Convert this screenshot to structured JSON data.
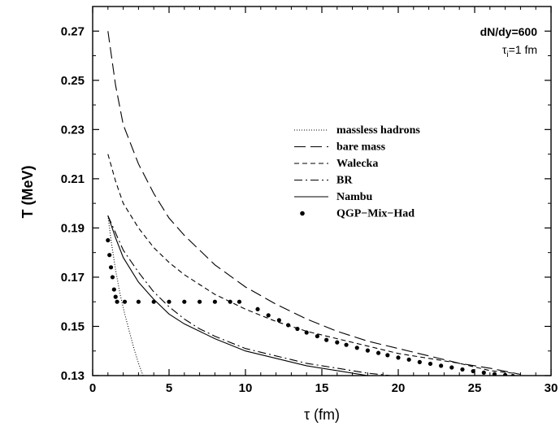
{
  "chart_data": {
    "type": "line",
    "xlabel": "τ (fm)",
    "ylabel": "T (MeV)",
    "xlim": [
      0,
      30
    ],
    "ylim": [
      0.13,
      0.28
    ],
    "x_ticks": [
      0,
      5,
      10,
      15,
      20,
      25,
      30
    ],
    "y_ticks": [
      0.13,
      0.15,
      0.17,
      0.19,
      0.21,
      0.23,
      0.25,
      0.27
    ],
    "annotations": {
      "line1": "dN/dy=600",
      "line2_main": "τ",
      "line2_sub": "i",
      "line2_rest": "=1 fm"
    },
    "legend_position": "center-right",
    "series": [
      {
        "name": "massless hadrons",
        "style": "dotted",
        "x": [
          1.0,
          1.2,
          1.5,
          1.8,
          2.1,
          2.4,
          2.7,
          3.0,
          3.3
        ],
        "y": [
          0.195,
          0.185,
          0.173,
          0.163,
          0.155,
          0.148,
          0.141,
          0.135,
          0.13
        ]
      },
      {
        "name": "bare mass",
        "style": "long-dash",
        "x": [
          1.0,
          1.5,
          2.0,
          3.0,
          4.0,
          5.0,
          6.0,
          8.0,
          10.0,
          12.0,
          14.0,
          16.0,
          18.0,
          20.0,
          22.0,
          24.0,
          26.0,
          28.0
        ],
        "y": [
          0.27,
          0.248,
          0.232,
          0.216,
          0.204,
          0.194,
          0.187,
          0.175,
          0.166,
          0.159,
          0.153,
          0.148,
          0.144,
          0.141,
          0.138,
          0.135,
          0.133,
          0.1305
        ]
      },
      {
        "name": "Walecka",
        "style": "short-dash",
        "x": [
          1.0,
          1.5,
          2.0,
          3.0,
          4.0,
          5.0,
          6.0,
          8.0,
          10.0,
          12.0,
          14.0,
          16.0,
          18.0,
          20.0,
          22.0,
          24.0,
          26.0,
          27.5
        ],
        "y": [
          0.22,
          0.209,
          0.2,
          0.19,
          0.182,
          0.176,
          0.171,
          0.163,
          0.157,
          0.152,
          0.148,
          0.145,
          0.142,
          0.139,
          0.137,
          0.135,
          0.132,
          0.131
        ]
      },
      {
        "name": "BR",
        "style": "dash-dot",
        "x": [
          1.0,
          1.5,
          2.0,
          3.0,
          4.0,
          5.0,
          6.0,
          7.0,
          8.0,
          10.0,
          12.0,
          14.0,
          16.0,
          18.0,
          19.5
        ],
        "y": [
          0.195,
          0.188,
          0.181,
          0.172,
          0.164,
          0.158,
          0.153,
          0.149,
          0.146,
          0.141,
          0.138,
          0.135,
          0.133,
          0.131,
          0.13
        ]
      },
      {
        "name": "Nambu",
        "style": "solid",
        "x": [
          1.0,
          1.5,
          2.0,
          3.0,
          4.0,
          5.0,
          6.0,
          7.0,
          8.0,
          10.0,
          12.0,
          14.0,
          16.0,
          18.0
        ],
        "y": [
          0.195,
          0.186,
          0.178,
          0.168,
          0.161,
          0.155,
          0.151,
          0.148,
          0.145,
          0.14,
          0.137,
          0.134,
          0.132,
          0.13
        ]
      },
      {
        "name": "QGP−Mix−Had",
        "style": "dots",
        "x": [
          1.0,
          1.1,
          1.2,
          1.3,
          1.4,
          1.5,
          1.6,
          2.1,
          3.0,
          4.0,
          5.0,
          6.0,
          7.0,
          8.0,
          9.0,
          9.6,
          10.8,
          11.5,
          12.2,
          12.8,
          13.4,
          14.0,
          14.7,
          15.3,
          16.0,
          16.6,
          17.3,
          18.0,
          18.7,
          19.3,
          20.0,
          20.7,
          21.4,
          22.1,
          22.8,
          23.5,
          24.2,
          24.9,
          25.6,
          26.3,
          27.0,
          27.5
        ],
        "y": [
          0.185,
          0.179,
          0.174,
          0.17,
          0.165,
          0.162,
          0.16,
          0.16,
          0.16,
          0.16,
          0.16,
          0.16,
          0.16,
          0.16,
          0.16,
          0.16,
          0.157,
          0.1545,
          0.1525,
          0.1505,
          0.149,
          0.1475,
          0.146,
          0.1445,
          0.1435,
          0.1425,
          0.1413,
          0.1402,
          0.1392,
          0.1383,
          0.1373,
          0.1365,
          0.1355,
          0.1348,
          0.134,
          0.1333,
          0.1325,
          0.1318,
          0.1312,
          0.1306,
          0.1302,
          0.1298
        ]
      }
    ]
  }
}
